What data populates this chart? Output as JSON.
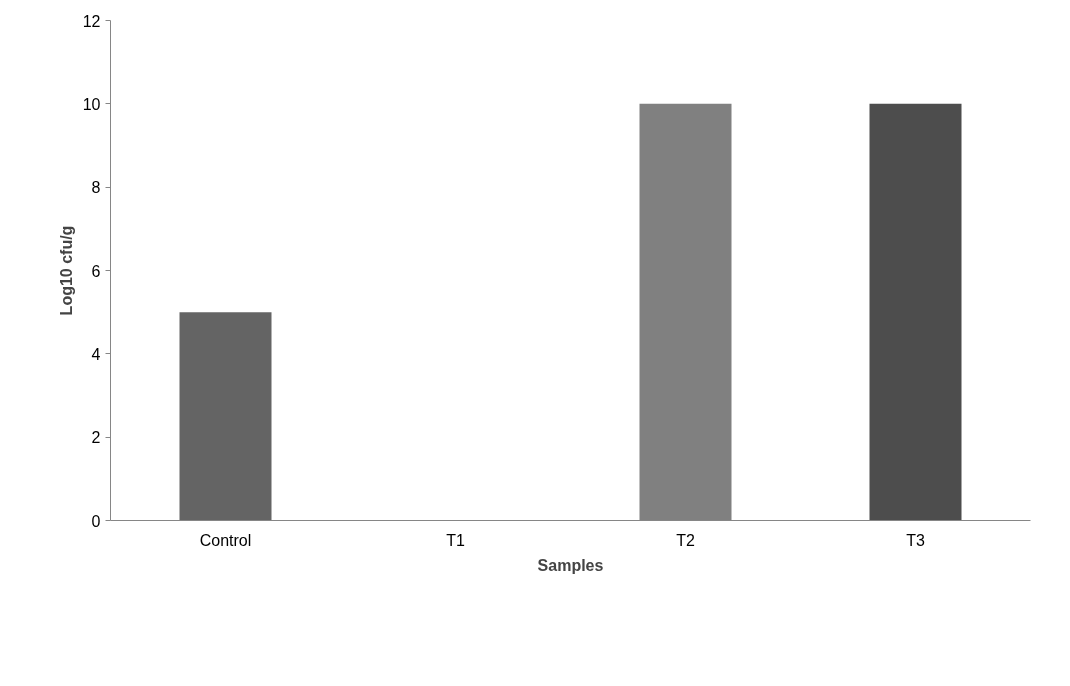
{
  "chart_data": {
    "type": "bar",
    "categories": [
      "Control",
      "T1",
      "T2",
      "T3"
    ],
    "values": [
      5,
      0,
      10,
      10
    ],
    "colors": [
      "#646464",
      "#7f7f7f",
      "#808080",
      "#4d4d4d"
    ],
    "xlabel": "Samples",
    "ylabel": "Log10 cfu/g",
    "ylim": [
      0,
      12
    ],
    "yticks": [
      0,
      2,
      4,
      6,
      8,
      10,
      12
    ],
    "grid": false
  }
}
